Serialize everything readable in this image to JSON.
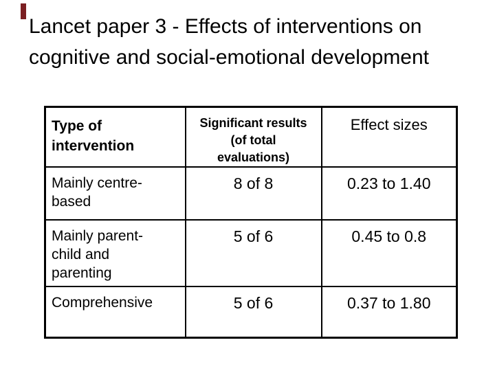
{
  "slide": {
    "title": {
      "line1": "Lancet paper 3 - Effects of interventions on",
      "line2": "cognitive and social-emotional development"
    },
    "accent_bar_color": "#7b1f22",
    "text_color": "#000000",
    "background_color": "#ffffff",
    "table_border_color": "#000000"
  },
  "table": {
    "headers": {
      "type": "Type of intervention",
      "significant": "Significant results (of total evaluations)",
      "effect": "Effect sizes"
    },
    "rows": [
      {
        "type": "Mainly centre-based",
        "significant": "8 of 8",
        "effect": "0.23 to 1.40"
      },
      {
        "type": "Mainly parent-child and parenting",
        "significant": "5 of 6",
        "effect": "0.45 to 0.8"
      },
      {
        "type": "Comprehensive",
        "significant": "5 of 6",
        "effect": "0.37 to 1.80"
      }
    ]
  }
}
